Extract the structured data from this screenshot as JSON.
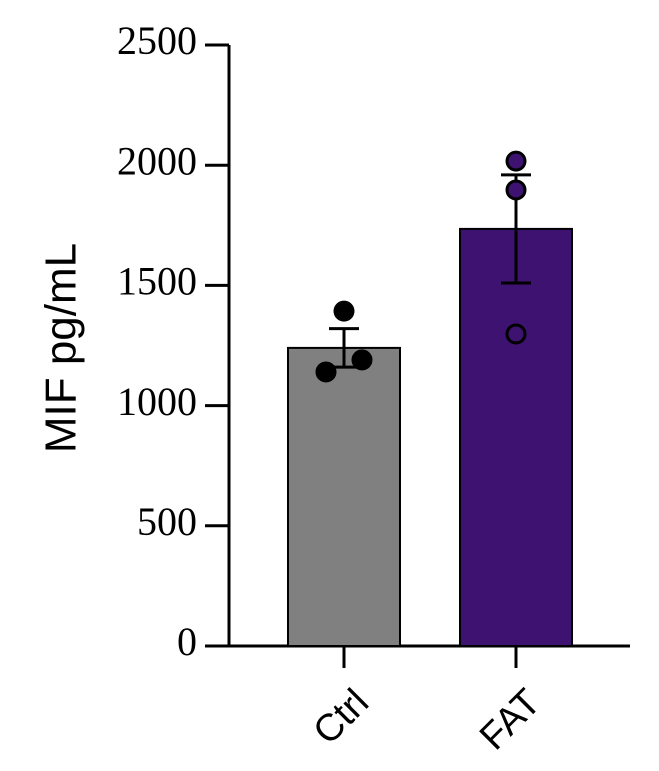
{
  "chart_data": {
    "type": "bar",
    "y_label": "MIF pg/mL",
    "categories": [
      "Ctrl",
      "FAT"
    ],
    "values": [
      1240,
      1735
    ],
    "errors": [
      80,
      225
    ],
    "colors": [
      "#808080",
      "#3d1270"
    ],
    "points": [
      [
        1393,
        1140,
        1190
      ],
      [
        2017,
        1897,
        1298
      ]
    ],
    "ylim": [
      0,
      2500
    ],
    "yticks": [
      0,
      500,
      1000,
      1500,
      2000,
      2500
    ]
  }
}
